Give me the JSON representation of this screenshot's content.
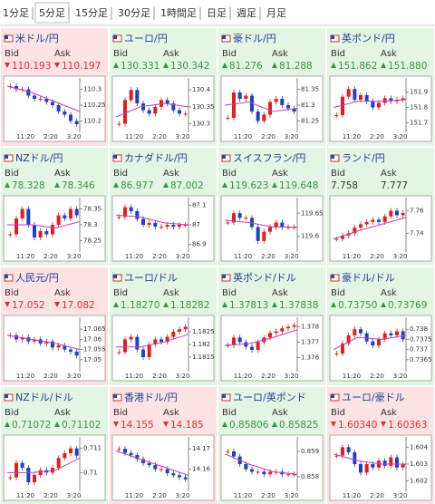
{
  "tabs": [
    "1分足",
    "5分足",
    "15分足",
    "30分足",
    "1時間足",
    "日足",
    "週足",
    "月足"
  ],
  "active_tab": 1,
  "panels": [
    {
      "name": "米ドル/円",
      "direction": "down",
      "bid_label": "Bid",
      "ask_label": "Ask",
      "bid": "110.193",
      "ask": "110.197",
      "chart": {
        "type": "candlestick",
        "xticks": [
          "11:20",
          "2:20",
          "3:20"
        ],
        "ylim": [
          110.17,
          110.33
        ],
        "yticks": [
          110.3,
          110.25,
          110.2
        ],
        "close": [
          110.31,
          110.3,
          110.3,
          110.28,
          110.27,
          110.27,
          110.26,
          110.25,
          110.23,
          110.22,
          110.2,
          110.19
        ],
        "ma": [
          110.31,
          110.29,
          110.26,
          110.23
        ]
      }
    },
    {
      "name": "ユーロ/円",
      "direction": "up",
      "bid_label": "Bid",
      "ask_label": "Ask",
      "bid": "130.331",
      "ask": "130.342",
      "chart": {
        "type": "candlestick",
        "xticks": [
          "11:20",
          "2:20",
          "3:20"
        ],
        "ylim": [
          130.28,
          130.43
        ],
        "yticks": [
          130.4,
          130.35,
          130.3
        ],
        "close": [
          130.3,
          130.37,
          130.4,
          130.36,
          130.34,
          130.33,
          130.35,
          130.37,
          130.36,
          130.34,
          130.33,
          130.33
        ],
        "ma": [
          130.32,
          130.35,
          130.36,
          130.35
        ]
      }
    },
    {
      "name": "豪ドル/円",
      "direction": "up",
      "bid_label": "Bid",
      "ask_label": "Ask",
      "bid": "81.276",
      "ask": "81.288",
      "chart": {
        "type": "candlestick",
        "xticks": [
          "11:20",
          "2:20",
          "3:20"
        ],
        "ylim": [
          81.22,
          81.38
        ],
        "yticks": [
          81.35,
          81.3,
          81.25
        ],
        "close": [
          81.26,
          81.34,
          81.32,
          81.33,
          81.28,
          81.25,
          81.27,
          81.31,
          81.32,
          81.3,
          81.29,
          81.28
        ],
        "ma": [
          81.3,
          81.31,
          81.28,
          81.29
        ]
      }
    },
    {
      "name": "英ポンド/円",
      "direction": "up",
      "bid_label": "Bid",
      "ask_label": "Ask",
      "bid": "151.862",
      "ask": "151.880",
      "chart": {
        "type": "candlestick",
        "xticks": [
          "11:20",
          "2:20",
          "3:20"
        ],
        "ylim": [
          151.65,
          151.98
        ],
        "yticks": [
          151.9,
          151.8,
          151.7
        ],
        "close": [
          151.75,
          151.87,
          151.92,
          151.85,
          151.88,
          151.84,
          151.8,
          151.83,
          151.86,
          151.84,
          151.85,
          151.86
        ],
        "ma": [
          151.8,
          151.84,
          151.84,
          151.85
        ]
      }
    },
    {
      "name": "NZドル/円",
      "direction": "up",
      "bid_label": "Bid",
      "ask_label": "Ask",
      "bid": "78.328",
      "ask": "78.346",
      "chart": {
        "type": "candlestick",
        "xticks": [
          "11:20",
          "2:20",
          "3:20"
        ],
        "ylim": [
          78.22,
          78.38
        ],
        "yticks": [
          78.35,
          78.3,
          78.25
        ],
        "close": [
          78.27,
          78.32,
          78.35,
          78.3,
          78.26,
          78.28,
          78.27,
          78.3,
          78.33,
          78.32,
          78.35,
          78.33
        ],
        "ma": [
          78.3,
          78.3,
          78.29,
          78.31
        ]
      }
    },
    {
      "name": "カナダドル/円",
      "direction": "up",
      "bid_label": "Bid",
      "ask_label": "Ask",
      "bid": "86.977",
      "ask": "87.002",
      "chart": {
        "type": "candlestick",
        "xticks": [
          "11:20",
          "2:20",
          "3:20"
        ],
        "ylim": [
          86.87,
          87.13
        ],
        "yticks": [
          87.1,
          87,
          86.9
        ],
        "close": [
          87.04,
          87.09,
          87.07,
          87.03,
          87,
          87.01,
          86.99,
          86.99,
          87,
          86.99,
          87,
          87
        ],
        "ma": [
          87.05,
          87.04,
          87.01,
          87
        ]
      }
    },
    {
      "name": "スイスフラン/円",
      "direction": "up",
      "bid_label": "Bid",
      "ask_label": "Ask",
      "bid": "119.623",
      "ask": "119.648",
      "chart": {
        "type": "candlestick",
        "xticks": [
          "11:20",
          "2:20",
          "3:20"
        ],
        "ylim": [
          119.57,
          119.68
        ],
        "yticks": [
          119.65,
          119.6
        ],
        "close": [
          119.63,
          119.65,
          119.64,
          119.64,
          119.62,
          119.59,
          119.61,
          119.62,
          119.63,
          119.62,
          119.62,
          119.62
        ],
        "ma": [
          119.635,
          119.63,
          119.62,
          119.62
        ]
      }
    },
    {
      "name": "ランド/円",
      "direction": "none",
      "bid_label": "Bid",
      "ask_label": "Ask",
      "bid": "7.758",
      "ask": "7.777",
      "chart": {
        "type": "candlestick",
        "xticks": [
          "11:20",
          "2:20",
          "3:20"
        ],
        "ylim": [
          7.725,
          7.77
        ],
        "yticks": [
          7.76,
          7.74
        ],
        "close": [
          7.735,
          7.738,
          7.74,
          7.745,
          7.748,
          7.75,
          7.752,
          7.75,
          7.755,
          7.76,
          7.756,
          7.758
        ],
        "ma": [
          7.735,
          7.742,
          7.748,
          7.754
        ]
      }
    },
    {
      "name": "人民元/円",
      "direction": "down",
      "bid_label": "Bid",
      "ask_label": "Ask",
      "bid": "17.052",
      "ask": "17.082",
      "chart": {
        "type": "candlestick",
        "xticks": [
          "11:20",
          "2:20",
          "3:20"
        ],
        "ylim": [
          17.045,
          17.07
        ],
        "yticks": [
          17.065,
          17.06,
          17.055,
          17.05
        ],
        "close": [
          17.062,
          17.06,
          17.061,
          17.059,
          17.06,
          17.058,
          17.059,
          17.056,
          17.057,
          17.055,
          17.054,
          17.052
        ],
        "ma": [
          17.062,
          17.06,
          17.058,
          17.055
        ]
      }
    },
    {
      "name": "ユーロ/ドル",
      "direction": "up",
      "bid_label": "Bid",
      "ask_label": "Ask",
      "bid": "1.18270",
      "ask": "1.18282",
      "chart": {
        "type": "candlestick",
        "xticks": [
          "11:20",
          "2:20",
          "3:20"
        ],
        "ylim": [
          1.181,
          1.183
        ],
        "yticks": [
          1.1825,
          1.182,
          1.1815
        ],
        "close": [
          1.1817,
          1.1822,
          1.1823,
          1.1818,
          1.1815,
          1.182,
          1.1822,
          1.1821,
          1.1823,
          1.1825,
          1.1826,
          1.1827
        ],
        "ma": [
          1.1819,
          1.1819,
          1.1821,
          1.1824
        ]
      }
    },
    {
      "name": "英ポンド/ドル",
      "direction": "up",
      "bid_label": "Bid",
      "ask_label": "Ask",
      "bid": "1.37813",
      "ask": "1.37838",
      "chart": {
        "type": "candlestick",
        "xticks": [
          "11:20",
          "2:20",
          "3:20"
        ],
        "ylim": [
          1.3752,
          1.3785
        ],
        "yticks": [
          1.378,
          1.377,
          1.376
        ],
        "close": [
          1.3768,
          1.3773,
          1.377,
          1.3767,
          1.3765,
          1.377,
          1.3773,
          1.3776,
          1.3777,
          1.3779,
          1.378,
          1.3781
        ],
        "ma": [
          1.3768,
          1.3769,
          1.3773,
          1.3778
        ]
      }
    },
    {
      "name": "豪ドル/ドル",
      "direction": "up",
      "bid_label": "Bid",
      "ask_label": "Ask",
      "bid": "0.73750",
      "ask": "0.73769",
      "chart": {
        "type": "candlestick",
        "xticks": [
          "11:20",
          "2:20",
          "3:20"
        ],
        "ylim": [
          0.736,
          0.7385
        ],
        "yticks": [
          0.738,
          0.7375,
          0.737,
          0.7365
        ],
        "close": [
          0.7368,
          0.7373,
          0.7377,
          0.738,
          0.7378,
          0.7374,
          0.7372,
          0.7375,
          0.7378,
          0.7377,
          0.7379,
          0.7375
        ],
        "ma": [
          0.737,
          0.7376,
          0.7375,
          0.7377
        ]
      }
    },
    {
      "name": "NZドル/ドル",
      "direction": "up",
      "bid_label": "Bid",
      "ask_label": "Ask",
      "bid": "0.71072",
      "ask": "0.71102",
      "chart": {
        "type": "candlestick",
        "xticks": [
          "11:20",
          "2:20",
          "3:20"
        ],
        "ylim": [
          0.7093,
          0.7114
        ],
        "yticks": [
          0.711,
          0.71
        ],
        "close": [
          0.7098,
          0.7104,
          0.7102,
          0.7096,
          0.7099,
          0.7101,
          0.71,
          0.7102,
          0.7106,
          0.7108,
          0.711,
          0.7107
        ],
        "ma": [
          0.71,
          0.71,
          0.7101,
          0.7106
        ]
      }
    },
    {
      "name": "香港ドル/円",
      "direction": "down",
      "bid_label": "Bid",
      "ask_label": "Ask",
      "bid": "14.155",
      "ask": "14.185",
      "chart": {
        "type": "candlestick",
        "xticks": [
          "11:20",
          "2:20",
          "3:20"
        ],
        "ylim": [
          14.15,
          14.175
        ],
        "yticks": [
          14.17,
          14.16
        ],
        "close": [
          14.17,
          14.168,
          14.167,
          14.165,
          14.163,
          14.162,
          14.16,
          14.16,
          14.158,
          14.157,
          14.156,
          14.155
        ],
        "ma": [
          14.169,
          14.165,
          14.161,
          14.157
        ]
      }
    },
    {
      "name": "ユーロ/英ポンド",
      "direction": "up",
      "bid_label": "Bid",
      "ask_label": "Ask",
      "bid": "0.85806",
      "ask": "0.85825",
      "chart": {
        "type": "candlestick",
        "xticks": [
          "11:20",
          "2:20",
          "3:20"
        ],
        "ylim": [
          0.8575,
          0.8595
        ],
        "yticks": [
          0.859,
          0.858
        ],
        "close": [
          0.859,
          0.8588,
          0.8585,
          0.8583,
          0.8582,
          0.8582,
          0.8581,
          0.8582,
          0.8582,
          0.8581,
          0.8581,
          0.8581
        ],
        "ma": [
          0.8589,
          0.8585,
          0.8582,
          0.8581
        ]
      }
    },
    {
      "name": "ユーロ/豪ドル",
      "direction": "down",
      "bid_label": "Bid",
      "ask_label": "Ask",
      "bid": "1.60340",
      "ask": "1.60363",
      "chart": {
        "type": "candlestick",
        "xticks": [
          "11:20",
          "2:20",
          "3:20"
        ],
        "ylim": [
          1.6015,
          1.6045
        ],
        "yticks": [
          1.604,
          1.603,
          1.602
        ],
        "close": [
          1.6035,
          1.604,
          1.6037,
          1.603,
          1.6025,
          1.603,
          1.6028,
          1.6032,
          1.6029,
          1.6034,
          1.6028,
          1.603
        ],
        "ma": [
          1.6036,
          1.6032,
          1.603,
          1.603
        ]
      }
    }
  ]
}
